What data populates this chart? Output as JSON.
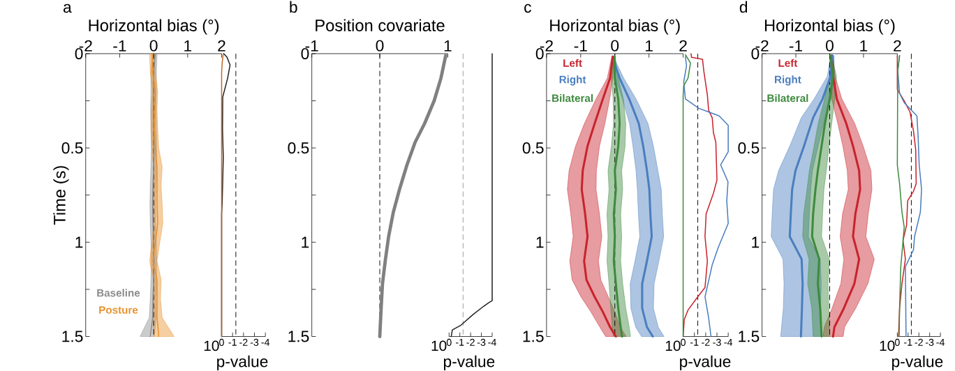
{
  "chart_data": [
    {
      "type": "line",
      "orientation": "horizontal",
      "title": "a",
      "xlabel": "Horizontal bias (°)",
      "ylabel": "Time (s)",
      "xlim": [
        -2,
        2
      ],
      "xticks": [
        -2,
        -1,
        0,
        1,
        2
      ],
      "ylim": [
        1.5,
        0
      ],
      "yticks": [
        0,
        {
          "value": 0.25,
          "label": null
        },
        0.5,
        {
          "value": 0.75,
          "label": null
        },
        1,
        {
          "value": 1.25,
          "label": null
        },
        1.5
      ],
      "legend": "bottom left",
      "ref_lines": [
        {
          "axis": "x",
          "value": 0,
          "color": "#000000",
          "line_style": "dashed"
        }
      ],
      "series": [
        {
          "name": "Baseline",
          "color": "#8c8c8c",
          "x": [
            0,
            0.1,
            0.2,
            0.3,
            0.4,
            0.5,
            0.6,
            0.7,
            0.8,
            0.9,
            1.0,
            1.1,
            1.2,
            1.3,
            1.4,
            1.5
          ],
          "values": [
            0.05,
            0.0,
            0.0,
            -0.01,
            0.0,
            0.01,
            0.0,
            -0.02,
            -0.03,
            -0.02,
            0.0,
            0.01,
            0.0,
            -0.02,
            -0.03,
            -0.1
          ],
          "lower": [
            -0.03,
            -0.08,
            -0.08,
            -0.09,
            -0.08,
            -0.07,
            -0.08,
            -0.1,
            -0.11,
            -0.1,
            -0.08,
            -0.07,
            -0.08,
            -0.1,
            -0.13,
            -0.4
          ],
          "upper": [
            0.1,
            0.08,
            0.08,
            0.07,
            0.08,
            0.09,
            0.08,
            0.06,
            0.05,
            0.06,
            0.08,
            0.09,
            0.08,
            0.06,
            0.07,
            0.02
          ]
        },
        {
          "name": "Posture",
          "color": "#e8922e",
          "x": [
            0,
            0.1,
            0.2,
            0.3,
            0.4,
            0.5,
            0.6,
            0.7,
            0.8,
            0.9,
            1.0,
            1.1,
            1.2,
            1.3,
            1.4,
            1.5
          ],
          "values": [
            -0.05,
            -0.03,
            0.05,
            0.03,
            0.02,
            0.05,
            0.1,
            0.1,
            0.1,
            0.12,
            0.05,
            -0.02,
            0.1,
            0.1,
            0.1,
            0.15
          ],
          "lower": [
            -0.12,
            -0.1,
            -0.03,
            -0.07,
            -0.08,
            -0.05,
            0.0,
            0.0,
            -0.02,
            0.0,
            -0.05,
            -0.12,
            0.0,
            -0.02,
            -0.02,
            0.0
          ],
          "upper": [
            0.02,
            0.05,
            0.12,
            0.1,
            0.12,
            0.15,
            0.25,
            0.22,
            0.25,
            0.27,
            0.18,
            0.1,
            0.22,
            0.2,
            0.25,
            0.6
          ]
        }
      ]
    },
    {
      "type": "line",
      "orientation": "horizontal",
      "xlabel": "p-value",
      "annotations": [
        "10"
      ],
      "xlim": [
        0,
        -4
      ],
      "xticks": [
        0,
        -1,
        -2,
        -3,
        -4
      ],
      "ylim": [
        1.5,
        0
      ],
      "tick_labels": "x",
      "ref_lines": [
        {
          "axis": "x",
          "value": -1.3,
          "color": "#000000",
          "line_style": "dashed"
        }
      ],
      "series": [
        {
          "color": "#222222",
          "x": [
            0,
            0.02,
            0.06,
            0.13,
            0.23,
            0.4,
            0.55,
            0.79,
            0.85,
            1.5
          ],
          "values": [
            -0.2,
            -0.5,
            -0.77,
            -0.55,
            -0.1,
            -0.08,
            -0.15,
            -0.05,
            0,
            0
          ]
        },
        {
          "color": "#c06a2a",
          "x": [
            0,
            0.05,
            0.1,
            1.5
          ],
          "values": [
            -0.15,
            -0.05,
            0,
            0
          ]
        }
      ]
    },
    {
      "type": "line",
      "orientation": "horizontal",
      "title": "b",
      "xlabel": "Position covariate",
      "xlim": [
        -1,
        1
      ],
      "xticks": [
        -1,
        0,
        1
      ],
      "ylim": [
        1.5,
        0
      ],
      "yticks": [
        0,
        {
          "value": 0.25,
          "label": null
        },
        0.5,
        {
          "value": 0.75,
          "label": null
        },
        1,
        {
          "value": 1.25,
          "label": null
        },
        1.5
      ],
      "ref_lines": [
        {
          "axis": "x",
          "value": 0,
          "color": "#000000",
          "line_style": "dashed"
        }
      ],
      "series": [
        {
          "color": "#808080",
          "x": [
            0.01,
            0.13,
            0.25,
            0.37,
            0.47,
            0.59,
            0.72,
            0.84,
            0.97,
            1.1,
            1.22,
            1.35,
            1.5
          ],
          "values": [
            0.97,
            0.9,
            0.8,
            0.66,
            0.52,
            0.4,
            0.29,
            0.2,
            0.13,
            0.08,
            0.04,
            0.02,
            0
          ]
        }
      ]
    },
    {
      "type": "line",
      "orientation": "horizontal",
      "xlabel": "p-value",
      "annotations": [
        "10"
      ],
      "xlim": [
        0,
        -4
      ],
      "xticks": [
        0,
        -1,
        -2,
        -3,
        -4
      ],
      "ylim": [
        1.5,
        0
      ],
      "tick_labels": "x",
      "ref_lines": [
        {
          "axis": "x",
          "value": -1.3,
          "color": "#999999",
          "line_style": "dashed"
        }
      ],
      "series": [
        {
          "color": "#222222",
          "x": [
            0,
            1.31,
            1.32,
            1.34,
            1.385,
            1.44,
            1.465,
            1.5
          ],
          "values": [
            -4,
            -4,
            -3.7,
            -3.2,
            -2.2,
            -1.1,
            -0.3,
            -0.2
          ]
        }
      ]
    },
    {
      "type": "line",
      "orientation": "horizontal",
      "title": "c",
      "xlabel": "Horizontal bias (°)",
      "xlim": [
        -2,
        2
      ],
      "xticks": [
        -2,
        -1,
        0,
        1,
        2
      ],
      "ylim": [
        1.5,
        0
      ],
      "yticks": [
        0,
        {
          "value": 0.25,
          "label": null
        },
        0.5,
        {
          "value": 0.75,
          "label": null
        },
        1,
        {
          "value": 1.25,
          "label": null
        },
        1.5
      ],
      "legend": "top left",
      "ref_lines": [
        {
          "axis": "x",
          "value": 0,
          "color": "#000000",
          "line_style": "dashed"
        }
      ],
      "series": [
        {
          "name": "Left",
          "color": "#c8232c",
          "x": [
            0.015,
            0.13,
            0.24,
            0.37,
            0.49,
            0.62,
            0.72,
            0.85,
            0.97,
            1.1,
            1.2,
            1.29,
            1.37,
            1.45,
            1.5
          ],
          "values": [
            -0.06,
            -0.14,
            -0.35,
            -0.59,
            -0.8,
            -0.94,
            -0.97,
            -0.87,
            -0.8,
            -0.9,
            -0.83,
            -0.59,
            -0.35,
            -0.14,
            0.03
          ],
          "lower": [
            -0.09,
            -0.22,
            -0.55,
            -0.89,
            -1.15,
            -1.34,
            -1.39,
            -1.29,
            -1.22,
            -1.32,
            -1.25,
            -0.99,
            -0.7,
            -0.44,
            -0.27
          ],
          "upper": [
            -0.03,
            -0.06,
            -0.15,
            -0.29,
            -0.45,
            -0.54,
            -0.55,
            -0.45,
            -0.38,
            -0.48,
            -0.41,
            -0.19,
            0.0,
            0.16,
            0.33
          ]
        },
        {
          "name": "Right",
          "color": "#4a7ebf",
          "x": [
            0.04,
            0.13,
            0.24,
            0.37,
            0.49,
            0.62,
            0.72,
            0.85,
            0.97,
            1.1,
            1.22,
            1.35,
            1.45,
            1.5
          ],
          "values": [
            -0.03,
            0.14,
            0.42,
            0.7,
            0.83,
            0.94,
            1.01,
            1.04,
            1.08,
            0.94,
            0.8,
            0.8,
            0.94,
            1.11
          ],
          "lower": [
            -0.08,
            0.02,
            0.22,
            0.43,
            0.53,
            0.62,
            0.66,
            0.69,
            0.73,
            0.59,
            0.45,
            0.47,
            0.61,
            0.78
          ],
          "upper": [
            0.02,
            0.26,
            0.62,
            0.97,
            1.13,
            1.26,
            1.36,
            1.39,
            1.43,
            1.29,
            1.15,
            1.13,
            1.27,
            1.44
          ]
        },
        {
          "name": "Bilateral",
          "color": "#3f8a3f",
          "x": [
            0.015,
            0.13,
            0.24,
            0.37,
            0.49,
            0.62,
            0.72,
            0.85,
            0.97,
            1.1,
            1.22,
            1.35,
            1.45,
            1.5
          ],
          "values": [
            -0.01,
            0,
            0.1,
            0.14,
            0.1,
            0,
            0.03,
            -0.03,
            0,
            -0.03,
            0.03,
            0.1,
            0.17,
            0.21
          ],
          "lower": [
            -0.03,
            -0.1,
            -0.05,
            -0.04,
            -0.1,
            -0.2,
            -0.17,
            -0.23,
            -0.2,
            -0.23,
            -0.17,
            -0.12,
            -0.08,
            -0.04
          ],
          "upper": [
            0.01,
            0.1,
            0.25,
            0.32,
            0.3,
            0.2,
            0.23,
            0.17,
            0.2,
            0.17,
            0.23,
            0.32,
            0.42,
            0.46
          ]
        }
      ]
    },
    {
      "type": "line",
      "orientation": "horizontal",
      "xlabel": "p-value",
      "annotations": [
        "10"
      ],
      "xlim": [
        0,
        -4
      ],
      "xticks": [
        0,
        -1,
        -2,
        -3,
        -4
      ],
      "ylim": [
        1.5,
        0
      ],
      "tick_labels": "x",
      "ref_lines": [
        {
          "axis": "x",
          "value": -1.3,
          "color": "#000000",
          "line_style": "dashed"
        }
      ],
      "series": [
        {
          "color": "#c8232c",
          "x": [
            0,
            0.02,
            0.03,
            0.09,
            0.22,
            0.3,
            0.34,
            0.42,
            0.47,
            0.67,
            0.74,
            0.85,
            0.97,
            1.1,
            1.24,
            1.29,
            1.36,
            1.41,
            1.5
          ],
          "values": [
            -0.7,
            -0.75,
            -1.72,
            -1.83,
            -2.15,
            -2.26,
            -2.58,
            -2.69,
            -2.9,
            -3.0,
            -2.69,
            -2.04,
            -1.94,
            -2.15,
            -1.94,
            -1.29,
            -0.43,
            -0.1,
            0
          ]
        },
        {
          "color": "#4a7ebf",
          "x": [
            0.015,
            0.065,
            0.15,
            0.24,
            0.29,
            0.33,
            0.38,
            0.52,
            0.59,
            0.68,
            0.78,
            0.9,
            1.03,
            1.12,
            1.29,
            1.4,
            1.5
          ],
          "values": [
            -0.2,
            -0.3,
            -0.05,
            -0.2,
            -1.4,
            -3.2,
            -4,
            -4,
            -3.33,
            -3.98,
            -3.87,
            -4,
            -3.1,
            -2.58,
            -1.94,
            -2.26,
            -2.47
          ]
        },
        {
          "color": "#3f8a3f",
          "x": [
            0.005,
            0.05,
            0.13,
            0.17,
            0.22,
            1.5
          ],
          "values": [
            -0.2,
            -0.65,
            -0.43,
            -0.05,
            0,
            0
          ]
        }
      ]
    },
    {
      "type": "line",
      "orientation": "horizontal",
      "title": "d",
      "xlabel": "Horizontal bias (°)",
      "xlim": [
        -2,
        2
      ],
      "xticks": [
        -2,
        -1,
        0,
        1,
        2
      ],
      "ylim": [
        1.5,
        0
      ],
      "yticks": [
        0,
        {
          "value": 0.25,
          "label": null
        },
        0.5,
        {
          "value": 0.75,
          "label": null
        },
        1,
        {
          "value": 1.25,
          "label": null
        },
        1.5
      ],
      "legend": "top left",
      "ref_lines": [
        {
          "axis": "x",
          "value": 0,
          "color": "#000000",
          "line_style": "dashed"
        }
      ],
      "series": [
        {
          "name": "Left",
          "color": "#c8232c",
          "x": [
            0.01,
            0.12,
            0.24,
            0.37,
            0.49,
            0.62,
            0.72,
            0.85,
            0.97,
            1.09,
            1.22,
            1.35,
            1.45,
            1.5
          ],
          "values": [
            0.07,
            0.1,
            0.21,
            0.49,
            0.69,
            0.87,
            0.9,
            0.76,
            0.69,
            0.87,
            0.73,
            0.42,
            0.14,
            0.1
          ],
          "lower": [
            0.04,
            0.04,
            0.06,
            0.24,
            0.39,
            0.52,
            0.55,
            0.38,
            0.31,
            0.42,
            0.33,
            0.07,
            -0.16,
            -0.2
          ],
          "upper": [
            0.1,
            0.16,
            0.36,
            0.74,
            0.99,
            1.22,
            1.25,
            1.14,
            1.07,
            1.32,
            1.13,
            0.77,
            0.44,
            0.4
          ]
        },
        {
          "name": "Right",
          "color": "#4a7ebf",
          "x": [
            0.01,
            0.12,
            0.24,
            0.34,
            0.49,
            0.62,
            0.72,
            0.85,
            0.97,
            1.09,
            1.22,
            1.35,
            1.5
          ],
          "values": [
            0.08,
            0.03,
            -0.21,
            -0.49,
            -0.76,
            -1.01,
            -1.11,
            -1.15,
            -1.18,
            -0.83,
            -0.8,
            -0.82,
            -0.85
          ],
          "lower": [
            0.03,
            -0.07,
            -0.46,
            -0.84,
            -1.18,
            -1.51,
            -1.66,
            -1.7,
            -1.73,
            -1.38,
            -1.35,
            -1.37,
            -1.45
          ],
          "upper": [
            0.13,
            0.13,
            0.04,
            -0.14,
            -0.34,
            -0.51,
            -0.56,
            -0.6,
            -0.63,
            -0.28,
            -0.25,
            -0.27,
            -0.25
          ]
        },
        {
          "name": "Bilateral",
          "color": "#3f8a3f",
          "x": [
            0.01,
            0.12,
            0.24,
            0.37,
            0.49,
            0.62,
            0.72,
            0.85,
            0.97,
            1.09,
            1.22,
            1.35,
            1.5
          ],
          "values": [
            0.03,
            0.1,
            0,
            -0.14,
            -0.24,
            -0.35,
            -0.42,
            -0.49,
            -0.52,
            -0.31,
            -0.35,
            -0.28,
            -0.24
          ],
          "lower": [
            0,
            0,
            -0.15,
            -0.34,
            -0.46,
            -0.6,
            -0.67,
            -0.77,
            -0.8,
            -0.61,
            -0.65,
            -0.53,
            -0.49
          ],
          "upper": [
            0.06,
            0.2,
            0.15,
            0.06,
            -0.02,
            -0.1,
            -0.17,
            -0.21,
            -0.24,
            -0.01,
            -0.05,
            -0.03,
            0.01
          ]
        }
      ]
    },
    {
      "type": "line",
      "orientation": "horizontal",
      "xlabel": "p-value",
      "annotations": [
        "10"
      ],
      "xlim": [
        0,
        -4
      ],
      "xticks": [
        0,
        -1,
        -2,
        -3,
        -4
      ],
      "ylim": [
        1.5,
        0
      ],
      "tick_labels": "x",
      "ref_lines": [
        {
          "axis": "x",
          "value": -1.3,
          "color": "#000000",
          "line_style": "dashed"
        }
      ],
      "series": [
        {
          "color": "#c8232c",
          "x": [
            0.01,
            0.19,
            0.25,
            0.31,
            0.41,
            0.51,
            0.69,
            0.73,
            0.78,
            0.91,
            0.99,
            1.09,
            1.22,
            1.35,
            1.5
          ],
          "values": [
            0,
            0,
            -0.64,
            -1.18,
            -1.5,
            -1.71,
            -1.75,
            -1.5,
            -0.96,
            -0.86,
            -0.53,
            -0.75,
            -0.43,
            -0.21,
            -0.11
          ]
        },
        {
          "color": "#4a7ebf",
          "x": [
            0.01,
            0.09,
            0.21,
            0.26,
            0.33,
            0.44,
            0.59,
            0.72,
            0.84,
            0.97,
            1.04,
            1.13,
            1.5
          ],
          "values": [
            -0.21,
            -0.04,
            -0.21,
            -0.64,
            -1.82,
            -1.93,
            -2.03,
            -2.25,
            -2.14,
            -1.6,
            -1.5,
            -0.75,
            -0.81
          ]
        },
        {
          "color": "#3f8a3f",
          "x": [
            0.01,
            0.09,
            0.59,
            0.69,
            0.84,
            0.92,
            1.13,
            1.35,
            1.5
          ],
          "values": [
            -0.21,
            -0.04,
            0,
            -0.21,
            -0.43,
            -0.64,
            -0.32,
            -0.21,
            -0.17
          ]
        }
      ]
    }
  ]
}
